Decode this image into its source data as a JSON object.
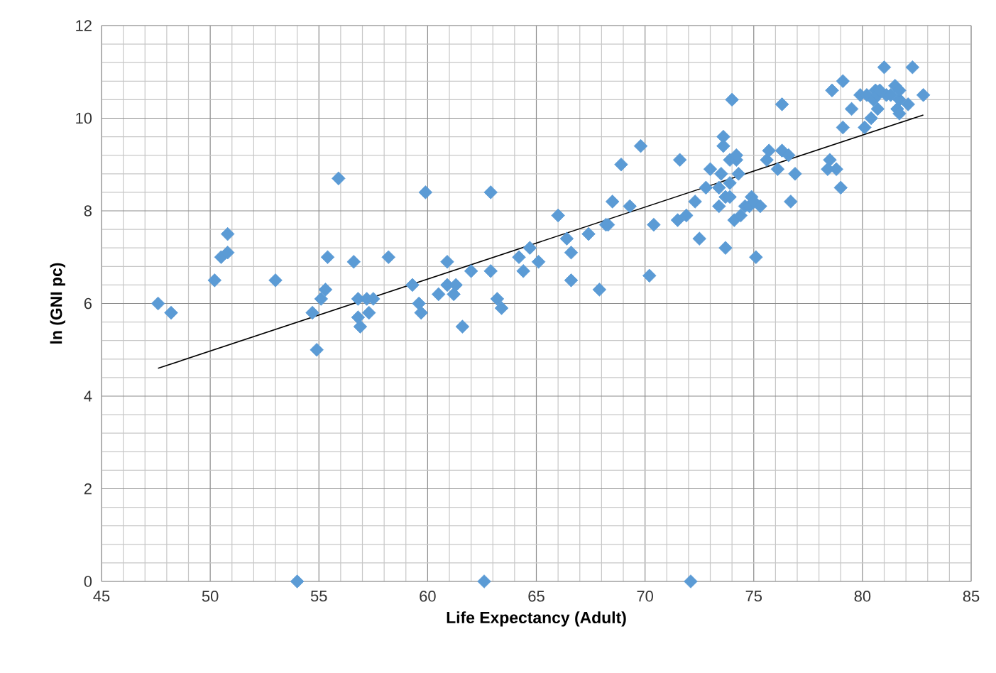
{
  "chart_data": {
    "type": "scatter",
    "xlabel": "Life Expectancy (Adult)",
    "ylabel": "ln (GNI pc)",
    "xlim": [
      45,
      85
    ],
    "xticks": [
      45,
      50,
      55,
      60,
      65,
      70,
      75,
      80,
      85
    ],
    "ylim": [
      0,
      12
    ],
    "yticks": [
      0,
      2,
      4,
      6,
      8,
      10,
      12
    ],
    "grid": true,
    "series": [
      {
        "marker": "diamond",
        "color": "#5b9bd5",
        "x": [
          47.6,
          48.2,
          50.2,
          50.5,
          50.8,
          50.8,
          53.0,
          54.0,
          54.7,
          54.9,
          55.1,
          55.3,
          55.4,
          55.9,
          56.6,
          56.8,
          56.8,
          56.9,
          57.2,
          57.3,
          57.5,
          58.2,
          59.3,
          59.6,
          59.7,
          59.9,
          60.5,
          60.9,
          60.9,
          61.2,
          61.3,
          61.6,
          62.0,
          62.6,
          62.9,
          62.9,
          63.2,
          63.4,
          64.2,
          64.4,
          64.7,
          65.1,
          66.0,
          66.4,
          66.6,
          66.6,
          67.4,
          67.9,
          68.2,
          68.3,
          68.5,
          68.9,
          69.3,
          69.8,
          70.2,
          70.4,
          71.5,
          71.6,
          71.9,
          72.3,
          72.5,
          72.8,
          73.0,
          73.4,
          73.4,
          73.5,
          73.6,
          73.6,
          73.7,
          73.7,
          73.9,
          73.9,
          73.9,
          74.0,
          74.1,
          74.2,
          74.2,
          74.3,
          74.4,
          74.6,
          74.8,
          74.9,
          75.0,
          75.1,
          75.3,
          75.6,
          75.7,
          76.1,
          76.3,
          76.3,
          76.6,
          76.7,
          76.9,
          78.6,
          78.5,
          78.4,
          78.8,
          79.0,
          79.1,
          79.1,
          79.5,
          79.9,
          80.1,
          80.2,
          80.4,
          80.5,
          80.6,
          80.7,
          80.7,
          80.8,
          81.0,
          81.1,
          81.3,
          81.5,
          81.6,
          81.7,
          81.7,
          81.7,
          82.1,
          82.3,
          82.8,
          72.1
        ],
        "values": [
          6.0,
          5.8,
          6.5,
          7.0,
          7.1,
          7.5,
          6.5,
          0,
          5.8,
          5.0,
          6.1,
          6.3,
          7.0,
          8.7,
          6.9,
          6.1,
          5.7,
          5.5,
          6.1,
          5.8,
          6.1,
          7.0,
          6.4,
          6.0,
          5.8,
          8.4,
          6.2,
          6.4,
          6.9,
          6.2,
          6.4,
          5.5,
          6.7,
          0,
          8.4,
          6.7,
          6.1,
          5.9,
          7.0,
          6.7,
          7.2,
          6.9,
          7.9,
          7.4,
          6.5,
          7.1,
          7.5,
          6.3,
          7.7,
          7.7,
          8.2,
          9.0,
          8.1,
          9.4,
          6.6,
          7.7,
          7.8,
          9.1,
          7.9,
          8.2,
          7.4,
          8.5,
          8.9,
          8.5,
          8.1,
          8.8,
          9.6,
          9.4,
          7.2,
          8.3,
          9.1,
          8.6,
          8.3,
          10.4,
          7.8,
          9.1,
          9.2,
          8.8,
          7.9,
          8.1,
          8.1,
          8.3,
          8.2,
          7.0,
          8.1,
          9.1,
          9.3,
          8.9,
          9.3,
          10.3,
          9.2,
          8.2,
          8.8,
          10.6,
          9.1,
          8.9,
          8.9,
          8.5,
          9.8,
          10.8,
          10.2,
          10.5,
          9.8,
          10.5,
          10.0,
          10.4,
          10.6,
          10.2,
          10.5,
          10.6,
          11.1,
          10.5,
          10.5,
          10.7,
          10.2,
          10.1,
          10.4,
          10.6,
          10.3,
          11.1,
          10.5,
          0
        ]
      },
      {
        "type": "line",
        "marker": "none",
        "line_style": "solid",
        "color": "#000000",
        "x": [
          47.6,
          82.8
        ],
        "values": [
          4.6,
          10.07
        ]
      }
    ]
  }
}
